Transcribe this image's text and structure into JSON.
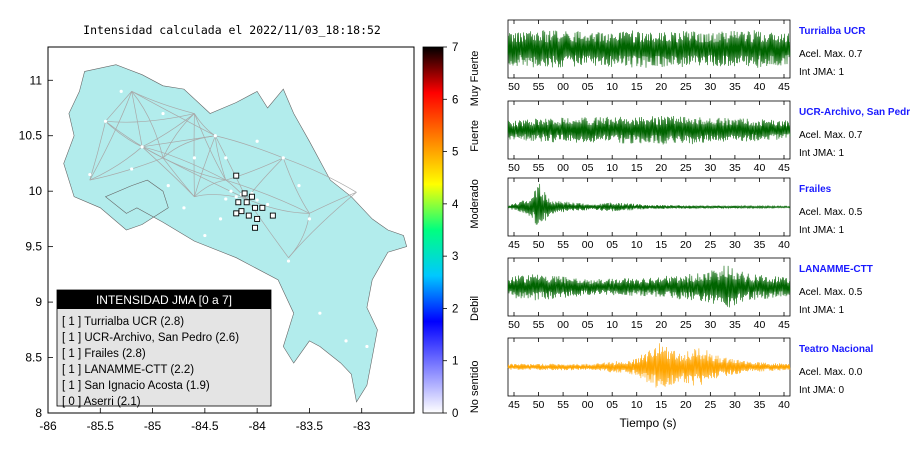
{
  "title": "Intensidad calculada el 2022/11/03_18:18:52",
  "map": {
    "x_ticks": [
      "-86",
      "-85.5",
      "-85",
      "-84.5",
      "-84",
      "-83.5",
      "-83"
    ],
    "y_ticks": [
      "11",
      "10.5",
      "10",
      "9.5",
      "9",
      "8.5",
      "8"
    ],
    "xlim": [
      -86,
      -82.5
    ],
    "ylim": [
      8,
      11.3
    ],
    "land_color": "#b2ecec",
    "road_color": "#a8a8a8",
    "stations": [
      {
        "lon": -84.2,
        "lat": 10.14
      },
      {
        "lon": -84.12,
        "lat": 9.98
      },
      {
        "lon": -84.05,
        "lat": 9.95
      },
      {
        "lon": -84.18,
        "lat": 9.9
      },
      {
        "lon": -84.1,
        "lat": 9.9
      },
      {
        "lon": -84.02,
        "lat": 9.85
      },
      {
        "lon": -83.95,
        "lat": 9.85
      },
      {
        "lon": -84.15,
        "lat": 9.82
      },
      {
        "lon": -84.08,
        "lat": 9.78
      },
      {
        "lon": -84.0,
        "lat": 9.75
      },
      {
        "lon": -83.85,
        "lat": 9.78
      },
      {
        "lon": -84.2,
        "lat": 9.8
      },
      {
        "lon": -84.02,
        "lat": 9.67
      }
    ]
  },
  "legend": {
    "title": "INTENSIDAD JMA [0 a 7]",
    "items": [
      "[ 1 ]  Turrialba UCR (2.8)",
      "[ 1 ]  UCR-Archivo, San Pedro (2.6)",
      "[ 1 ]  Frailes (2.8)",
      "[ 1 ]  LANAMME-CTT (2.2)",
      "[ 1 ]  San Ignacio Acosta (1.9)",
      "[ 0 ]  Aserri (2.1)"
    ]
  },
  "colorbar": {
    "ticks": [
      "0",
      "1",
      "2",
      "3",
      "4",
      "5",
      "6",
      "7"
    ],
    "range": [
      0,
      7
    ],
    "labels": [
      "No sentido",
      "Debil",
      "Moderado",
      "Fuerte",
      "Muy Fuerte"
    ],
    "colors": [
      "#ffffff",
      "#8080ff",
      "#0000ff",
      "#00c8ff",
      "#00ff80",
      "#ffff00",
      "#ff8000",
      "#ff0000",
      "#000000"
    ]
  },
  "chart_data": {
    "type": "line",
    "xlabel": "Tiempo (s)",
    "panels": [
      {
        "name": "Turrialba UCR",
        "accel": "Acel. Max. 0.7",
        "jma": "Int JMA: 1",
        "color": "#006400",
        "ticks": [
          "50",
          "55",
          "00",
          "05",
          "10",
          "15",
          "20",
          "25",
          "30",
          "35",
          "40",
          "45"
        ],
        "envelope": [
          [
            0,
            0.6
          ],
          [
            0.1,
            0.7
          ],
          [
            0.3,
            0.65
          ],
          [
            0.5,
            0.7
          ],
          [
            0.7,
            0.65
          ],
          [
            0.9,
            0.7
          ],
          [
            1,
            0.6
          ]
        ]
      },
      {
        "name": "UCR-Archivo, San Pedro",
        "accel": "Acel. Max. 0.7",
        "jma": "Int JMA: 1",
        "color": "#006400",
        "ticks": [
          "50",
          "55",
          "00",
          "05",
          "10",
          "15",
          "20",
          "25",
          "30",
          "35",
          "40",
          "45"
        ],
        "envelope": [
          [
            0,
            0.35
          ],
          [
            0.15,
            0.45
          ],
          [
            0.4,
            0.5
          ],
          [
            0.6,
            0.55
          ],
          [
            0.8,
            0.45
          ],
          [
            1,
            0.35
          ]
        ]
      },
      {
        "name": "Frailes",
        "accel": "Acel. Max. 0.5",
        "jma": "Int JMA: 1",
        "color": "#006400",
        "ticks": [
          "45",
          "50",
          "55",
          "00",
          "05",
          "10",
          "15",
          "20",
          "25",
          "30",
          "35",
          "40"
        ],
        "envelope": [
          [
            0,
            0.05
          ],
          [
            0.08,
            0.35
          ],
          [
            0.11,
            0.9
          ],
          [
            0.15,
            0.25
          ],
          [
            0.3,
            0.1
          ],
          [
            0.36,
            0.18
          ],
          [
            0.5,
            0.08
          ],
          [
            0.7,
            0.06
          ],
          [
            1,
            0.03
          ]
        ]
      },
      {
        "name": "LANAMME-CTT",
        "accel": "Acel. Max. 0.5",
        "jma": "Int JMA: 1",
        "color": "#006400",
        "ticks": [
          "50",
          "55",
          "00",
          "05",
          "10",
          "15",
          "20",
          "25",
          "30",
          "35",
          "40",
          "45"
        ],
        "envelope": [
          [
            0,
            0.4
          ],
          [
            0.1,
            0.5
          ],
          [
            0.3,
            0.3
          ],
          [
            0.5,
            0.35
          ],
          [
            0.7,
            0.55
          ],
          [
            0.78,
            0.85
          ],
          [
            0.85,
            0.5
          ],
          [
            1,
            0.35
          ]
        ]
      },
      {
        "name": "Teatro Nacional",
        "accel": "Acel. Max. 0.0",
        "jma": "Int JMA: 0",
        "color": "#ffa500",
        "ticks": [
          "45",
          "50",
          "55",
          "00",
          "05",
          "10",
          "15",
          "20",
          "25",
          "30",
          "35",
          "40"
        ],
        "envelope": [
          [
            0,
            0.12
          ],
          [
            0.3,
            0.12
          ],
          [
            0.45,
            0.3
          ],
          [
            0.54,
            0.9
          ],
          [
            0.6,
            0.55
          ],
          [
            0.68,
            0.75
          ],
          [
            0.75,
            0.4
          ],
          [
            0.85,
            0.2
          ],
          [
            1,
            0.12
          ]
        ]
      }
    ]
  }
}
